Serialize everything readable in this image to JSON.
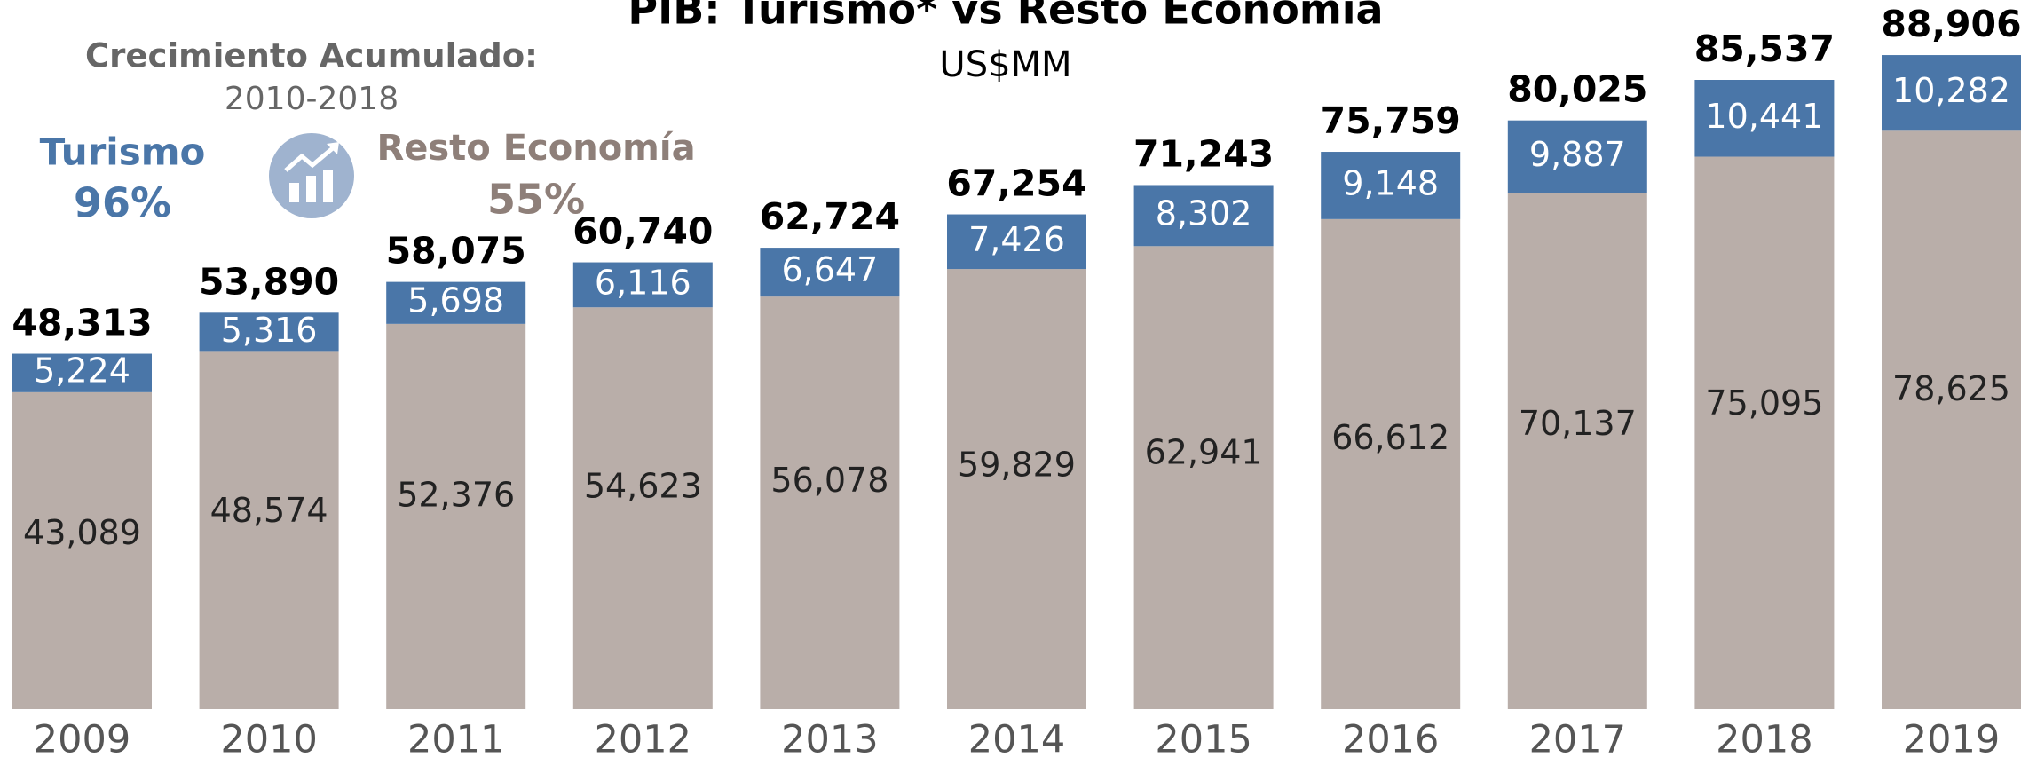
{
  "chart_data": {
    "type": "stacked_bar",
    "title": "PIB: Turismo* vs Resto Economía",
    "subtitle": "US$MM",
    "annotations": {
      "heading": "Crecimiento Acumulado:",
      "period": "2010-2018",
      "turismo_growth": "96%",
      "resto_growth": "55%"
    },
    "categories": [
      "2009",
      "2010",
      "2011",
      "2012",
      "2013",
      "2014",
      "2015",
      "2016",
      "2017",
      "2018",
      "2019"
    ],
    "series": [
      {
        "name": "Resto Economía",
        "color": "#b9aea9",
        "label_color": "#222222",
        "values": [
          43089,
          48574,
          52376,
          54623,
          56078,
          59829,
          62941,
          66612,
          70137,
          75095,
          78625
        ],
        "value_labels": [
          "43,089",
          "48,574",
          "52,376",
          "54,623",
          "56,078",
          "59,829",
          "62,941",
          "66,612",
          "70,137",
          "75,095",
          "78,625"
        ]
      },
      {
        "name": "Turismo",
        "color": "#4a76a8",
        "label_color": "#ffffff",
        "values": [
          5224,
          5316,
          5698,
          6116,
          6647,
          7426,
          8302,
          9148,
          9887,
          10441,
          10282
        ],
        "value_labels": [
          "5,224",
          "5,316",
          "5,698",
          "6,116",
          "6,647",
          "7,426",
          "8,302",
          "9,148",
          "9,887",
          "10,441",
          "10,282"
        ]
      }
    ],
    "totals": [
      48313,
      53890,
      58075,
      60740,
      62724,
      67254,
      71243,
      75759,
      80025,
      85537,
      88906
    ],
    "total_labels": [
      "48,313",
      "53,890",
      "58,075",
      "60,740",
      "62,724",
      "67,254",
      "71,243",
      "75,759",
      "80,025",
      "85,537",
      "88,906"
    ],
    "ylim": [
      0,
      90000
    ]
  }
}
